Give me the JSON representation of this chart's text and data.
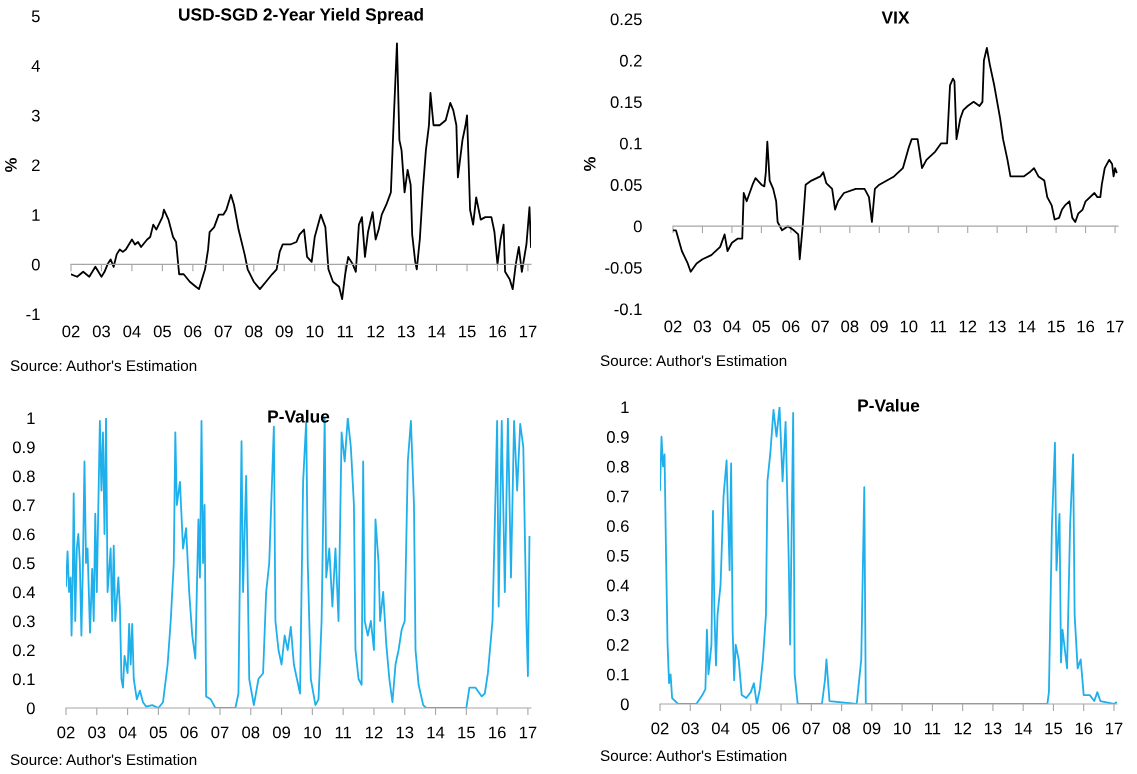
{
  "chart_data": [
    {
      "type": "line",
      "title": "USD-SGD 2-Year Yield Spread",
      "ylabel": "%",
      "annotations": [
        "Source: Author's Estimation"
      ],
      "xlim": [
        2002,
        2017.1
      ],
      "xticks": [
        {
          "value": 2002,
          "label": "02"
        },
        {
          "value": 2003,
          "label": "03"
        },
        {
          "value": 2004,
          "label": "04"
        },
        {
          "value": 2005,
          "label": "05"
        },
        {
          "value": 2006,
          "label": "06"
        },
        {
          "value": 2007,
          "label": "07"
        },
        {
          "value": 2008,
          "label": "08"
        },
        {
          "value": 2009,
          "label": "09"
        },
        {
          "value": 2010,
          "label": "10"
        },
        {
          "value": 2011,
          "label": "11"
        },
        {
          "value": 2012,
          "label": "12"
        },
        {
          "value": 2013,
          "label": "13"
        },
        {
          "value": 2014,
          "label": "14"
        },
        {
          "value": 2015,
          "label": "15"
        },
        {
          "value": 2016,
          "label": "16"
        },
        {
          "value": 2017,
          "label": "17"
        }
      ],
      "ylim": [
        -1,
        5
      ],
      "yticks": [
        -1,
        0,
        1,
        2,
        3,
        4,
        5
      ],
      "series": [
        {
          "color": "#000000",
          "x": [
            2002.0,
            2002.2,
            2002.4,
            2002.6,
            2002.8,
            2003.0,
            2003.1,
            2003.2,
            2003.3,
            2003.4,
            2003.5,
            2003.6,
            2003.7,
            2003.8,
            2004.0,
            2004.1,
            2004.2,
            2004.3,
            2004.5,
            2004.6,
            2004.7,
            2004.8,
            2005.0,
            2005.05,
            2005.2,
            2005.35,
            2005.45,
            2005.55,
            2005.7,
            2005.9,
            2006.1,
            2006.2,
            2006.3,
            2006.4,
            2006.45,
            2006.5,
            2006.55,
            2006.7,
            2006.85,
            2007.0,
            2007.1,
            2007.25,
            2007.35,
            2007.5,
            2007.7,
            2007.8,
            2008.0,
            2008.2,
            2008.4,
            2008.6,
            2008.75,
            2008.85,
            2008.95,
            2009.2,
            2009.4,
            2009.5,
            2009.65,
            2009.75,
            2009.9,
            2010.0,
            2010.2,
            2010.35,
            2010.45,
            2010.6,
            2010.8,
            2010.9,
            2011.0,
            2011.1,
            2011.25,
            2011.35,
            2011.45,
            2011.55,
            2011.65,
            2011.75,
            2011.9,
            2012.0,
            2012.1,
            2012.2,
            2012.35,
            2012.5,
            2012.6,
            2012.7,
            2012.78,
            2012.85,
            2012.95,
            2013.05,
            2013.15,
            2013.2,
            2013.3,
            2013.35,
            2013.45,
            2013.55,
            2013.65,
            2013.75,
            2013.8,
            2013.9,
            2014.1,
            2014.3,
            2014.45,
            2014.55,
            2014.65,
            2014.7,
            2014.85,
            2014.95,
            2015.0,
            2015.05,
            2015.1,
            2015.2,
            2015.3,
            2015.45,
            2015.6,
            2015.8,
            2015.9,
            2016.0,
            2016.1,
            2016.2,
            2016.25,
            2016.4,
            2016.5,
            2016.6,
            2016.7,
            2016.8,
            2016.95,
            2017.05,
            2017.1
          ],
          "values": [
            -0.2,
            -0.25,
            -0.15,
            -0.25,
            -0.05,
            -0.25,
            -0.15,
            0.0,
            0.1,
            -0.05,
            0.2,
            0.3,
            0.25,
            0.3,
            0.5,
            0.4,
            0.45,
            0.35,
            0.5,
            0.55,
            0.8,
            0.7,
            0.95,
            1.1,
            0.9,
            0.55,
            0.45,
            -0.2,
            -0.2,
            -0.35,
            -0.45,
            -0.5,
            -0.3,
            -0.1,
            0.1,
            0.3,
            0.65,
            0.75,
            1.0,
            1.0,
            1.1,
            1.4,
            1.2,
            0.7,
            0.2,
            -0.1,
            -0.35,
            -0.5,
            -0.35,
            -0.2,
            -0.1,
            0.25,
            0.4,
            0.4,
            0.45,
            0.6,
            0.7,
            0.15,
            0.05,
            0.55,
            1.0,
            0.75,
            -0.1,
            -0.35,
            -0.45,
            -0.7,
            -0.2,
            0.15,
            0.0,
            -0.15,
            0.8,
            0.95,
            0.15,
            0.65,
            1.05,
            0.5,
            0.7,
            1.0,
            1.2,
            1.45,
            3.0,
            4.45,
            2.5,
            2.3,
            1.45,
            1.9,
            1.6,
            0.6,
            0.05,
            -0.1,
            0.5,
            1.5,
            2.3,
            2.8,
            3.45,
            2.8,
            2.8,
            2.9,
            3.25,
            3.1,
            2.8,
            1.75,
            2.5,
            2.8,
            3.0,
            2.1,
            1.1,
            0.8,
            1.35,
            0.9,
            0.95,
            0.95,
            0.65,
            0.0,
            0.5,
            0.8,
            -0.15,
            -0.3,
            -0.5,
            0.0,
            0.35,
            -0.15,
            0.4,
            1.15,
            0.35
          ]
        }
      ]
    },
    {
      "type": "line",
      "title": "VIX",
      "ylabel": "%",
      "annotations": [
        "Source: Author's Estimation"
      ],
      "xlim": [
        2002,
        2017.1
      ],
      "xticks": [
        {
          "value": 2002,
          "label": "02"
        },
        {
          "value": 2003,
          "label": "03"
        },
        {
          "value": 2004,
          "label": "04"
        },
        {
          "value": 2005,
          "label": "05"
        },
        {
          "value": 2006,
          "label": "06"
        },
        {
          "value": 2007,
          "label": "07"
        },
        {
          "value": 2008,
          "label": "08"
        },
        {
          "value": 2009,
          "label": "09"
        },
        {
          "value": 2010,
          "label": "10"
        },
        {
          "value": 2011,
          "label": "11"
        },
        {
          "value": 2012,
          "label": "12"
        },
        {
          "value": 2013,
          "label": "13"
        },
        {
          "value": 2014,
          "label": "14"
        },
        {
          "value": 2015,
          "label": "15"
        },
        {
          "value": 2016,
          "label": "16"
        },
        {
          "value": 2017,
          "label": "17"
        }
      ],
      "ylim": [
        -0.1,
        0.25
      ],
      "yticks": [
        -0.1,
        -0.05,
        0,
        0.05,
        0.1,
        0.15,
        0.2,
        0.25
      ],
      "series": [
        {
          "color": "#000000",
          "x": [
            2002.0,
            2002.1,
            2002.3,
            2002.5,
            2002.6,
            2002.8,
            2003.0,
            2003.3,
            2003.6,
            2003.75,
            2003.85,
            2004.0,
            2004.2,
            2004.35,
            2004.4,
            2004.5,
            2004.7,
            2004.8,
            2005.0,
            2005.1,
            2005.15,
            2005.2,
            2005.28,
            2005.4,
            2005.5,
            2005.55,
            2005.7,
            2005.9,
            2006.1,
            2006.25,
            2006.3,
            2006.4,
            2006.5,
            2006.7,
            2007.0,
            2007.1,
            2007.2,
            2007.4,
            2007.5,
            2007.6,
            2007.8,
            2008.2,
            2008.5,
            2008.65,
            2008.75,
            2008.85,
            2009.0,
            2009.5,
            2009.8,
            2010.0,
            2010.1,
            2010.3,
            2010.45,
            2010.6,
            2010.9,
            2011.1,
            2011.3,
            2011.4,
            2011.5,
            2011.55,
            2011.62,
            2011.75,
            2011.85,
            2012.0,
            2012.2,
            2012.4,
            2012.5,
            2012.55,
            2012.65,
            2012.75,
            2012.9,
            2013.0,
            2013.1,
            2013.2,
            2013.35,
            2013.45,
            2013.6,
            2013.9,
            2014.1,
            2014.25,
            2014.4,
            2014.6,
            2014.7,
            2014.85,
            2014.95,
            2015.1,
            2015.2,
            2015.3,
            2015.45,
            2015.55,
            2015.65,
            2015.75,
            2015.9,
            2016.0,
            2016.3,
            2016.4,
            2016.5,
            2016.55,
            2016.65,
            2016.8,
            2016.9,
            2016.95,
            2017.0,
            2017.05
          ],
          "values": [
            -0.005,
            -0.005,
            -0.03,
            -0.045,
            -0.055,
            -0.045,
            -0.04,
            -0.035,
            -0.025,
            -0.01,
            -0.03,
            -0.02,
            -0.015,
            -0.015,
            0.04,
            0.03,
            0.05,
            0.058,
            0.05,
            0.048,
            0.065,
            0.102,
            0.055,
            0.045,
            0.03,
            0.005,
            -0.005,
            0.0,
            -0.005,
            -0.01,
            -0.04,
            0.0,
            0.05,
            0.055,
            0.06,
            0.065,
            0.052,
            0.045,
            0.02,
            0.03,
            0.04,
            0.045,
            0.045,
            0.035,
            0.005,
            0.045,
            0.05,
            0.06,
            0.07,
            0.095,
            0.105,
            0.105,
            0.07,
            0.08,
            0.09,
            0.1,
            0.1,
            0.17,
            0.178,
            0.175,
            0.105,
            0.13,
            0.14,
            0.145,
            0.15,
            0.145,
            0.15,
            0.2,
            0.215,
            0.195,
            0.17,
            0.15,
            0.13,
            0.105,
            0.08,
            0.06,
            0.06,
            0.06,
            0.065,
            0.07,
            0.06,
            0.055,
            0.035,
            0.025,
            0.008,
            0.01,
            0.02,
            0.025,
            0.03,
            0.01,
            0.005,
            0.015,
            0.02,
            0.03,
            0.04,
            0.035,
            0.035,
            0.05,
            0.07,
            0.08,
            0.075,
            0.06,
            0.07,
            0.065
          ]
        }
      ]
    },
    {
      "type": "line",
      "title": "P-Value",
      "annotations": [
        "Source: Author's Estimation"
      ],
      "xlim": [
        2002,
        2017.1
      ],
      "xticks": [
        {
          "value": 2002,
          "label": "02"
        },
        {
          "value": 2003,
          "label": "03"
        },
        {
          "value": 2004,
          "label": "04"
        },
        {
          "value": 2005,
          "label": "05"
        },
        {
          "value": 2006,
          "label": "06"
        },
        {
          "value": 2007,
          "label": "07"
        },
        {
          "value": 2008,
          "label": "08"
        },
        {
          "value": 2009,
          "label": "09"
        },
        {
          "value": 2010,
          "label": "10"
        },
        {
          "value": 2011,
          "label": "11"
        },
        {
          "value": 2012,
          "label": "12"
        },
        {
          "value": 2013,
          "label": "13"
        },
        {
          "value": 2014,
          "label": "14"
        },
        {
          "value": 2015,
          "label": "15"
        },
        {
          "value": 2016,
          "label": "16"
        },
        {
          "value": 2017,
          "label": "17"
        }
      ],
      "ylim": [
        0,
        1
      ],
      "yticks": [
        0,
        0.1,
        0.2,
        0.3,
        0.4,
        0.5,
        0.6,
        0.7,
        0.8,
        0.9,
        1
      ],
      "series": [
        {
          "color": "#1fb0ec",
          "x": [
            2002.0,
            2002.05,
            2002.1,
            2002.15,
            2002.18,
            2002.22,
            2002.25,
            2002.3,
            2002.35,
            2002.4,
            2002.45,
            2002.5,
            2002.55,
            2002.6,
            2002.65,
            2002.7,
            2002.78,
            2002.85,
            2002.9,
            2002.95,
            2003.0,
            2003.1,
            2003.15,
            2003.2,
            2003.25,
            2003.3,
            2003.35,
            2003.45,
            2003.5,
            2003.55,
            2003.6,
            2003.7,
            2003.75,
            2003.8,
            2003.85,
            2003.9,
            2004.0,
            2004.05,
            2004.1,
            2004.15,
            2004.2,
            2004.3,
            2004.4,
            2004.5,
            2004.6,
            2004.8,
            2005.0,
            2005.15,
            2005.3,
            2005.4,
            2005.5,
            2005.55,
            2005.6,
            2005.7,
            2005.8,
            2005.9,
            2006.0,
            2006.1,
            2006.2,
            2006.3,
            2006.35,
            2006.4,
            2006.45,
            2006.5,
            2006.55,
            2006.7,
            2006.85,
            2007.5,
            2007.6,
            2007.7,
            2007.75,
            2007.85,
            2007.95,
            2008.1,
            2008.25,
            2008.4,
            2008.5,
            2008.6,
            2008.75,
            2008.8,
            2008.9,
            2009.0,
            2009.1,
            2009.2,
            2009.3,
            2009.4,
            2009.5,
            2009.6,
            2009.7,
            2009.8,
            2009.85,
            2009.95,
            2010.1,
            2010.2,
            2010.3,
            2010.4,
            2010.45,
            2010.55,
            2010.65,
            2010.75,
            2010.85,
            2010.95,
            2011.05,
            2011.15,
            2011.25,
            2011.35,
            2011.4,
            2011.5,
            2011.6,
            2011.65,
            2011.7,
            2011.8,
            2011.9,
            2012.0,
            2012.05,
            2012.15,
            2012.2,
            2012.3,
            2012.4,
            2012.5,
            2012.6,
            2012.7,
            2012.8,
            2012.9,
            2013.0,
            2013.1,
            2013.2,
            2013.3,
            2013.35,
            2013.45,
            2013.6,
            2013.7,
            2015.0,
            2015.1,
            2015.3,
            2015.5,
            2015.6,
            2015.7,
            2015.85,
            2015.95,
            2016.0,
            2016.05,
            2016.15,
            2016.25,
            2016.35,
            2016.45,
            2016.55,
            2016.65,
            2016.75,
            2016.85,
            2016.95,
            2017.0,
            2017.05
          ],
          "values": [
            0.42,
            0.54,
            0.4,
            0.45,
            0.25,
            0.45,
            0.74,
            0.3,
            0.55,
            0.6,
            0.5,
            0.25,
            0.5,
            0.85,
            0.5,
            0.55,
            0.26,
            0.48,
            0.3,
            0.67,
            0.4,
            0.99,
            0.75,
            0.95,
            0.6,
            1.0,
            0.4,
            0.55,
            0.3,
            0.56,
            0.3,
            0.45,
            0.35,
            0.1,
            0.07,
            0.18,
            0.12,
            0.29,
            0.15,
            0.29,
            0.1,
            0.03,
            0.06,
            0.02,
            0.005,
            0.01,
            0.0,
            0.02,
            0.15,
            0.3,
            0.5,
            0.95,
            0.7,
            0.78,
            0.55,
            0.62,
            0.4,
            0.25,
            0.17,
            0.65,
            0.45,
            0.99,
            0.5,
            0.7,
            0.04,
            0.03,
            0.0,
            0.0,
            0.05,
            0.92,
            0.4,
            0.8,
            0.1,
            0.01,
            0.1,
            0.12,
            0.4,
            0.5,
            0.97,
            0.3,
            0.2,
            0.15,
            0.25,
            0.2,
            0.28,
            0.15,
            0.1,
            0.05,
            0.78,
            0.99,
            0.5,
            0.1,
            0.01,
            0.03,
            0.3,
            1.0,
            0.45,
            0.55,
            0.35,
            0.55,
            0.3,
            0.95,
            0.85,
            1.0,
            0.9,
            0.7,
            0.2,
            0.1,
            0.08,
            0.85,
            0.3,
            0.25,
            0.3,
            0.2,
            0.65,
            0.5,
            0.3,
            0.4,
            0.22,
            0.1,
            0.02,
            0.15,
            0.2,
            0.27,
            0.3,
            0.85,
            0.99,
            0.7,
            0.2,
            0.08,
            0.01,
            0.0,
            0.0,
            0.07,
            0.07,
            0.04,
            0.05,
            0.12,
            0.3,
            0.75,
            0.99,
            0.35,
            0.99,
            0.4,
            1.0,
            0.45,
            0.99,
            0.75,
            0.98,
            0.9,
            0.3,
            0.11,
            0.59
          ]
        }
      ]
    },
    {
      "type": "line",
      "title": "P-Value",
      "annotations": [
        "Source: Author's Estimation"
      ],
      "xlim": [
        2002,
        2017.1
      ],
      "xticks": [
        {
          "value": 2002,
          "label": "02"
        },
        {
          "value": 2003,
          "label": "03"
        },
        {
          "value": 2004,
          "label": "04"
        },
        {
          "value": 2005,
          "label": "05"
        },
        {
          "value": 2006,
          "label": "06"
        },
        {
          "value": 2007,
          "label": "07"
        },
        {
          "value": 2008,
          "label": "08"
        },
        {
          "value": 2009,
          "label": "09"
        },
        {
          "value": 2010,
          "label": "10"
        },
        {
          "value": 2011,
          "label": "11"
        },
        {
          "value": 2012,
          "label": "12"
        },
        {
          "value": 2013,
          "label": "13"
        },
        {
          "value": 2014,
          "label": "14"
        },
        {
          "value": 2015,
          "label": "15"
        },
        {
          "value": 2016,
          "label": "16"
        },
        {
          "value": 2017,
          "label": "17"
        }
      ],
      "ylim": [
        0,
        1
      ],
      "yticks": [
        0,
        0.1,
        0.2,
        0.3,
        0.4,
        0.5,
        0.6,
        0.7,
        0.8,
        0.9,
        1
      ],
      "series": [
        {
          "color": "#1fb0ec",
          "x": [
            2002.0,
            2002.05,
            2002.1,
            2002.15,
            2002.2,
            2002.25,
            2002.3,
            2002.35,
            2002.4,
            2002.6,
            2003.2,
            2003.4,
            2003.5,
            2003.55,
            2003.6,
            2003.7,
            2003.75,
            2003.8,
            2003.85,
            2003.9,
            2004.0,
            2004.1,
            2004.2,
            2004.3,
            2004.35,
            2004.4,
            2004.45,
            2004.5,
            2004.6,
            2004.7,
            2004.85,
            2005.0,
            2005.1,
            2005.2,
            2005.3,
            2005.4,
            2005.5,
            2005.55,
            2005.65,
            2005.75,
            2005.85,
            2005.95,
            2006.05,
            2006.15,
            2006.25,
            2006.3,
            2006.4,
            2006.45,
            2006.55,
            2007.35,
            2007.45,
            2007.5,
            2007.6,
            2008.5,
            2008.65,
            2008.75,
            2008.8,
            2014.8,
            2014.85,
            2014.95,
            2015.05,
            2015.1,
            2015.2,
            2015.25,
            2015.3,
            2015.45,
            2015.55,
            2015.65,
            2015.7,
            2015.8,
            2015.9,
            2016.0,
            2016.2,
            2016.35,
            2016.45,
            2016.55,
            2017.0,
            2017.07
          ],
          "values": [
            0.72,
            0.9,
            0.8,
            0.84,
            0.5,
            0.2,
            0.07,
            0.1,
            0.02,
            0.0,
            0.0,
            0.03,
            0.05,
            0.25,
            0.1,
            0.2,
            0.65,
            0.3,
            0.13,
            0.3,
            0.4,
            0.7,
            0.82,
            0.45,
            0.81,
            0.25,
            0.08,
            0.2,
            0.15,
            0.03,
            0.02,
            0.04,
            0.07,
            0.0,
            0.05,
            0.15,
            0.3,
            0.75,
            0.85,
            0.99,
            0.9,
            1.0,
            0.75,
            0.95,
            0.5,
            0.2,
            0.98,
            0.1,
            0.0,
            0.0,
            0.08,
            0.15,
            0.01,
            0.0,
            0.15,
            0.73,
            0.0,
            0.0,
            0.04,
            0.6,
            0.88,
            0.45,
            0.64,
            0.14,
            0.25,
            0.12,
            0.6,
            0.84,
            0.3,
            0.12,
            0.15,
            0.03,
            0.03,
            0.01,
            0.04,
            0.01,
            0.0,
            0.005
          ]
        }
      ]
    }
  ]
}
